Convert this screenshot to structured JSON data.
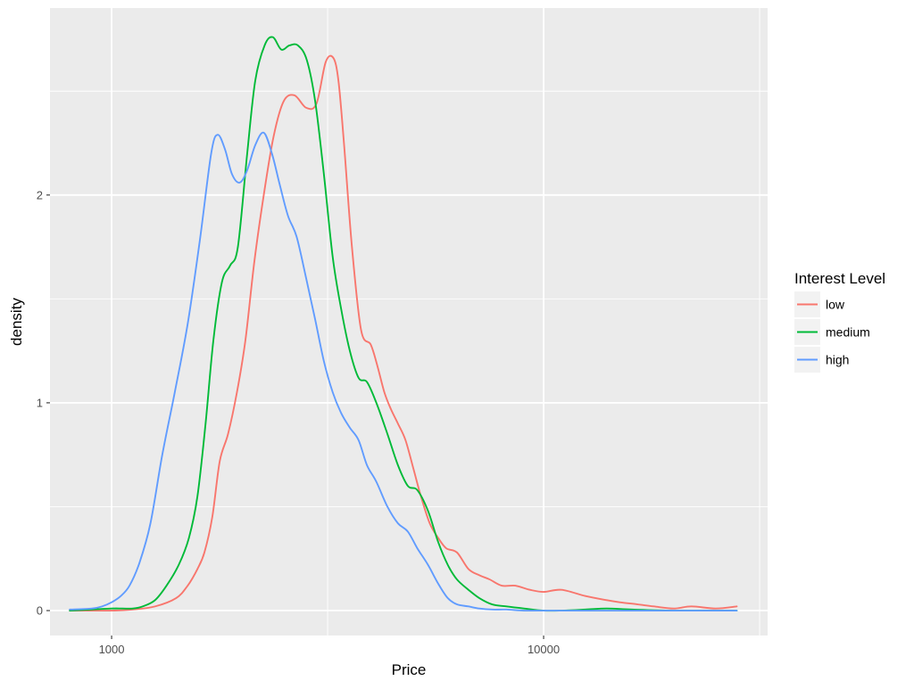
{
  "chart_data": {
    "type": "line",
    "title": "",
    "xlabel": "Price",
    "ylabel": "density",
    "x_scale": "log10",
    "xlim": [
      720,
      33000
    ],
    "ylim": [
      -0.12,
      2.9
    ],
    "x_ticks": [
      {
        "value": 1000,
        "label": "1000"
      },
      {
        "value": 10000,
        "label": "10000"
      }
    ],
    "x_minor_ticks": [
      3162.28,
      31622.78
    ],
    "y_ticks": [
      {
        "value": 0,
        "label": "0"
      },
      {
        "value": 1,
        "label": "1"
      },
      {
        "value": 2,
        "label": "2"
      }
    ],
    "y_minor_ticks": [
      0.5,
      1.5,
      2.5
    ],
    "grid": true,
    "panel_background": "#ebebeb",
    "grid_color": "#ffffff",
    "legend": {
      "title": "Interest Level",
      "position": "right",
      "entries": [
        "low",
        "medium",
        "high"
      ]
    },
    "series": [
      {
        "name": "low",
        "color": "#F8766D",
        "x": [
          800,
          1000,
          1120,
          1260,
          1410,
          1500,
          1580,
          1640,
          1710,
          1780,
          1860,
          1950,
          2040,
          2140,
          2250,
          2370,
          2500,
          2650,
          2820,
          2980,
          3130,
          3260,
          3350,
          3450,
          3600,
          3780,
          3980,
          4120,
          4280,
          4430,
          4600,
          4790,
          5000,
          5200,
          5450,
          5700,
          5950,
          6300,
          6700,
          7100,
          7500,
          8000,
          8600,
          9300,
          10000,
          11000,
          12500,
          14000,
          15000,
          16500,
          18000,
          20000,
          22000,
          25000,
          28000
        ],
        "values": [
          0.0,
          0.0,
          0.005,
          0.02,
          0.06,
          0.12,
          0.2,
          0.28,
          0.45,
          0.72,
          0.85,
          1.05,
          1.3,
          1.68,
          2.0,
          2.28,
          2.45,
          2.48,
          2.42,
          2.44,
          2.64,
          2.66,
          2.55,
          2.25,
          1.75,
          1.35,
          1.28,
          1.18,
          1.05,
          0.97,
          0.9,
          0.82,
          0.68,
          0.55,
          0.42,
          0.35,
          0.3,
          0.28,
          0.2,
          0.17,
          0.15,
          0.12,
          0.12,
          0.1,
          0.09,
          0.1,
          0.07,
          0.05,
          0.04,
          0.03,
          0.02,
          0.01,
          0.02,
          0.01,
          0.02
        ]
      },
      {
        "name": "medium",
        "color": "#00BA38",
        "x": [
          800,
          900,
          1000,
          1060,
          1120,
          1180,
          1260,
          1340,
          1430,
          1510,
          1580,
          1650,
          1720,
          1800,
          1880,
          1960,
          2060,
          2150,
          2260,
          2360,
          2470,
          2580,
          2700,
          2830,
          2960,
          3100,
          3250,
          3400,
          3560,
          3730,
          3900,
          4100,
          4350,
          4600,
          4850,
          5100,
          5400,
          5700,
          6000,
          6300,
          6700,
          7100,
          7600,
          8200,
          9000,
          10000,
          11000,
          12500,
          14000,
          16000,
          20000,
          28000
        ],
        "values": [
          0.0,
          0.005,
          0.01,
          0.01,
          0.01,
          0.02,
          0.05,
          0.12,
          0.22,
          0.35,
          0.55,
          0.9,
          1.3,
          1.58,
          1.66,
          1.75,
          2.2,
          2.55,
          2.72,
          2.76,
          2.7,
          2.72,
          2.72,
          2.65,
          2.45,
          2.1,
          1.7,
          1.45,
          1.25,
          1.12,
          1.1,
          1.0,
          0.85,
          0.7,
          0.6,
          0.58,
          0.48,
          0.33,
          0.22,
          0.15,
          0.1,
          0.06,
          0.03,
          0.02,
          0.01,
          0.0,
          0.0,
          0.005,
          0.01,
          0.005,
          0.0,
          0.0
        ]
      },
      {
        "name": "high",
        "color": "#619CFF",
        "x": [
          800,
          900,
          950,
          1000,
          1050,
          1100,
          1160,
          1230,
          1310,
          1400,
          1500,
          1600,
          1700,
          1760,
          1830,
          1900,
          1980,
          2060,
          2150,
          2250,
          2350,
          2450,
          2560,
          2680,
          2820,
          2960,
          3100,
          3250,
          3400,
          3560,
          3730,
          3900,
          4100,
          4350,
          4600,
          4850,
          5100,
          5400,
          5700,
          6000,
          6300,
          6700,
          7100,
          7600,
          8200,
          9000,
          10000,
          12000,
          16000,
          28000
        ],
        "values": [
          0.005,
          0.01,
          0.02,
          0.04,
          0.07,
          0.12,
          0.23,
          0.42,
          0.75,
          1.05,
          1.38,
          1.78,
          2.2,
          2.29,
          2.22,
          2.1,
          2.06,
          2.12,
          2.24,
          2.3,
          2.2,
          2.05,
          1.9,
          1.8,
          1.6,
          1.4,
          1.2,
          1.05,
          0.95,
          0.88,
          0.82,
          0.7,
          0.62,
          0.5,
          0.42,
          0.38,
          0.3,
          0.22,
          0.13,
          0.06,
          0.03,
          0.02,
          0.01,
          0.005,
          0.005,
          0.0,
          0.0,
          0.0,
          0.0,
          0.0
        ]
      }
    ]
  }
}
